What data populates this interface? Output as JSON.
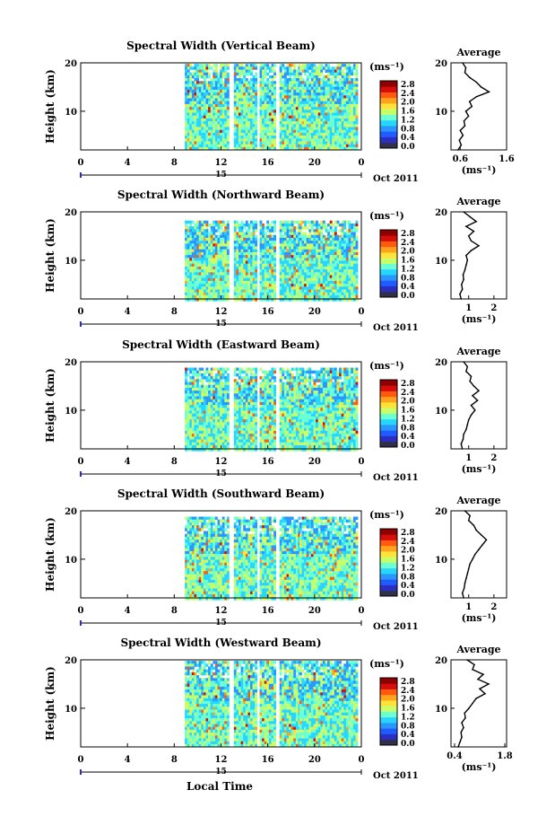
{
  "figure": {
    "xlabel": "Local Time",
    "date_label": "Oct 2011",
    "day_label": "15"
  },
  "colorbar": {
    "unit": "(ms⁻¹)",
    "ticks": [
      "2.8",
      "2.4",
      "2.0",
      "1.6",
      "1.2",
      "0.8",
      "0.4",
      "0.0"
    ],
    "colors": [
      "#30304a",
      "#2b2fbf",
      "#1f5bff",
      "#2a97ff",
      "#27d6ff",
      "#6cffd4",
      "#c7ff6a",
      "#ffe23a",
      "#ffa21c",
      "#ff5a10",
      "#d40e08",
      "#8f0000"
    ]
  },
  "chart_data": [
    {
      "type": "heatmap",
      "title": "Spectral Width (Vertical Beam)",
      "xlabel": "Local Time",
      "ylabel": "Height (km)",
      "xlim": [
        0,
        24
      ],
      "ylim": [
        2,
        20
      ],
      "xticks": [
        "0",
        "4",
        "8",
        "12",
        "16",
        "20",
        "0"
      ],
      "yticks": [
        "10",
        "20"
      ],
      "colorbar_unit": "(ms⁻¹)",
      "colorbar_ticks": [
        "2.8",
        "2.4",
        "2.0",
        "1.6",
        "1.2",
        "0.8",
        "0.4",
        "0.0"
      ],
      "data_intervals_hours": [
        [
          8.9,
          12.6
        ],
        [
          13.1,
          14.9
        ],
        [
          15.3,
          16.6
        ],
        [
          17.0,
          18.6
        ],
        [
          18.7,
          23.0
        ],
        [
          23.1,
          23.6
        ]
      ],
      "top_km": 19.8,
      "average_profile": {
        "title": "Average",
        "xlabel": "(ms⁻¹)",
        "xlim": [
          0.4,
          1.6
        ],
        "xticks": [
          "0.6",
          "1.6"
        ],
        "ylim": [
          2,
          20
        ],
        "yticks": [
          "10",
          "20"
        ],
        "height_km": [
          2,
          3,
          4,
          5,
          6,
          7,
          8,
          9,
          10,
          11,
          12,
          13,
          14,
          15,
          16,
          17,
          18,
          19,
          20
        ],
        "width": [
          0.55,
          0.62,
          0.58,
          0.66,
          0.6,
          0.7,
          0.68,
          0.78,
          0.72,
          0.85,
          0.8,
          0.95,
          1.22,
          1.05,
          0.95,
          0.8,
          0.7,
          0.72,
          0.65
        ]
      }
    },
    {
      "type": "heatmap",
      "title": "Spectral Width (Northward Beam)",
      "xlabel": "Local Time",
      "ylabel": "Height (km)",
      "xlim": [
        0,
        24
      ],
      "ylim": [
        2,
        20
      ],
      "xticks": [
        "0",
        "4",
        "8",
        "12",
        "16",
        "20",
        "0"
      ],
      "yticks": [
        "10",
        "20"
      ],
      "colorbar_unit": "(ms⁻¹)",
      "colorbar_ticks": [
        "2.8",
        "2.4",
        "2.0",
        "1.6",
        "1.2",
        "0.8",
        "0.4",
        "0.0"
      ],
      "data_intervals_hours": [
        [
          8.9,
          12.6
        ],
        [
          13.1,
          14.9
        ],
        [
          15.3,
          16.6
        ],
        [
          17.0,
          18.6
        ],
        [
          18.7,
          23.0
        ],
        [
          23.1,
          23.6
        ]
      ],
      "top_km": 18.2,
      "average_profile": {
        "title": "Average",
        "xlabel": "(ms⁻¹)",
        "xlim": [
          0.3,
          2.5
        ],
        "xticks": [
          "1",
          "2"
        ],
        "ylim": [
          2,
          20
        ],
        "yticks": [
          "10",
          "20"
        ],
        "height_km": [
          2,
          3,
          4,
          5,
          6,
          7,
          8,
          9,
          10,
          11,
          12,
          13,
          14,
          15,
          16,
          17,
          18,
          19,
          20
        ],
        "width": [
          0.7,
          0.65,
          0.75,
          0.72,
          0.8,
          0.78,
          0.85,
          0.9,
          0.95,
          0.9,
          1.1,
          1.4,
          1.1,
          1.0,
          1.2,
          0.9,
          1.3,
          1.05,
          0.8
        ]
      }
    },
    {
      "type": "heatmap",
      "title": "Spectral Width (Eastward Beam)",
      "xlabel": "Local Time",
      "ylabel": "Height (km)",
      "xlim": [
        0,
        24
      ],
      "ylim": [
        2,
        20
      ],
      "xticks": [
        "0",
        "4",
        "8",
        "12",
        "16",
        "20",
        "0"
      ],
      "yticks": [
        "10",
        "20"
      ],
      "colorbar_unit": "(ms⁻¹)",
      "colorbar_ticks": [
        "2.8",
        "2.4",
        "2.0",
        "1.6",
        "1.2",
        "0.8",
        "0.4",
        "0.0"
      ],
      "data_intervals_hours": [
        [
          8.9,
          12.6
        ],
        [
          13.1,
          14.9
        ],
        [
          15.3,
          16.6
        ],
        [
          17.0,
          18.6
        ],
        [
          18.7,
          23.0
        ],
        [
          23.1,
          23.6
        ]
      ],
      "top_km": 18.8,
      "average_profile": {
        "title": "Average",
        "xlabel": "(ms⁻¹)",
        "xlim": [
          0.3,
          2.5
        ],
        "xticks": [
          "1",
          "2"
        ],
        "ylim": [
          2,
          20
        ],
        "yticks": [
          "10",
          "20"
        ],
        "height_km": [
          2,
          3,
          4,
          5,
          6,
          7,
          8,
          9,
          10,
          11,
          12,
          13,
          14,
          15,
          16,
          17,
          18,
          19,
          20
        ],
        "width": [
          0.75,
          0.7,
          0.78,
          0.8,
          0.9,
          0.95,
          1.0,
          1.1,
          1.25,
          1.1,
          1.35,
          1.15,
          1.4,
          1.2,
          1.05,
          1.1,
          0.9,
          0.95,
          0.8
        ]
      }
    },
    {
      "type": "heatmap",
      "title": "Spectral Width (Southward Beam)",
      "xlabel": "Local Time",
      "ylabel": "Height (km)",
      "xlim": [
        0,
        24
      ],
      "ylim": [
        2,
        20
      ],
      "xticks": [
        "0",
        "4",
        "8",
        "12",
        "16",
        "20",
        "0"
      ],
      "yticks": [
        "10",
        "20"
      ],
      "colorbar_unit": "(ms⁻¹)",
      "colorbar_ticks": [
        "2.8",
        "2.4",
        "2.0",
        "1.6",
        "1.2",
        "0.8",
        "0.4",
        "0.0"
      ],
      "data_intervals_hours": [
        [
          8.9,
          12.6
        ],
        [
          13.1,
          14.9
        ],
        [
          15.3,
          16.6
        ],
        [
          17.0,
          18.6
        ],
        [
          18.7,
          23.0
        ],
        [
          23.1,
          23.6
        ]
      ],
      "top_km": 18.8,
      "average_profile": {
        "title": "Average",
        "xlabel": "(ms⁻¹)",
        "xlim": [
          0.3,
          2.5
        ],
        "xticks": [
          "1",
          "2"
        ],
        "ylim": [
          2,
          20
        ],
        "yticks": [
          "10",
          "20"
        ],
        "height_km": [
          2,
          3,
          4,
          5,
          6,
          7,
          8,
          9,
          10,
          11,
          12,
          13,
          14,
          15,
          16,
          17,
          18,
          19,
          20
        ],
        "width": [
          0.8,
          0.75,
          0.82,
          0.85,
          0.9,
          0.95,
          1.0,
          1.05,
          1.15,
          1.25,
          1.4,
          1.55,
          1.7,
          1.5,
          1.3,
          1.2,
          1.0,
          1.05,
          0.85
        ]
      }
    },
    {
      "type": "heatmap",
      "title": "Spectral Width (Westward Beam)",
      "xlabel": "Local Time",
      "ylabel": "Height (km)",
      "xlim": [
        0,
        24
      ],
      "ylim": [
        2,
        20
      ],
      "xticks": [
        "0",
        "4",
        "8",
        "12",
        "16",
        "20",
        "0"
      ],
      "yticks": [
        "10",
        "20"
      ],
      "colorbar_unit": "(ms⁻¹)",
      "colorbar_ticks": [
        "2.8",
        "2.4",
        "2.0",
        "1.6",
        "1.2",
        "0.8",
        "0.4",
        "0.0"
      ],
      "data_intervals_hours": [
        [
          8.9,
          12.6
        ],
        [
          13.1,
          14.9
        ],
        [
          15.3,
          16.6
        ],
        [
          17.0,
          18.6
        ],
        [
          18.7,
          23.0
        ],
        [
          23.1,
          23.6
        ]
      ],
      "top_km": 19.8,
      "average_profile": {
        "title": "Average",
        "xlabel": "(ms⁻¹)",
        "xlim": [
          0.3,
          1.85
        ],
        "xticks": [
          "0.4",
          "1.8"
        ],
        "ylim": [
          2,
          20
        ],
        "yticks": [
          "10",
          "20"
        ],
        "height_km": [
          2,
          3,
          4,
          5,
          6,
          7,
          8,
          9,
          10,
          11,
          12,
          13,
          14,
          15,
          16,
          17,
          18,
          19,
          20
        ],
        "width": [
          0.5,
          0.55,
          0.6,
          0.58,
          0.65,
          0.6,
          0.7,
          0.68,
          0.8,
          0.9,
          1.0,
          1.25,
          1.1,
          1.35,
          1.05,
          1.2,
          0.9,
          0.95,
          0.75
        ]
      }
    }
  ]
}
